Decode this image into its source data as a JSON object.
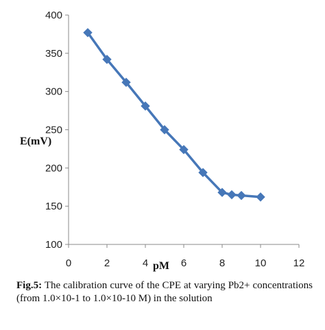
{
  "chart_data": {
    "type": "line",
    "title": "",
    "xlabel": "pM",
    "ylabel": "E(mV)",
    "xlim": [
      0,
      12
    ],
    "ylim": [
      100,
      400
    ],
    "xticks": [
      0,
      2,
      4,
      6,
      8,
      10,
      12
    ],
    "yticks": [
      100,
      150,
      200,
      250,
      300,
      350,
      400
    ],
    "grid": false,
    "series": [
      {
        "x": [
          1,
          2,
          3,
          4,
          5,
          6,
          7,
          8,
          8.5,
          9,
          10
        ],
        "y": [
          377,
          342,
          312,
          281,
          250,
          224,
          194,
          168,
          165,
          164,
          162
        ]
      }
    ],
    "colors": {
      "line": "#4677b8",
      "marker": "#4677b8"
    }
  },
  "caption": {
    "label": "Fig.5:",
    "text": " The calibration curve of the CPE at varying Pb2+ concentrations (from 1.0×10-1 to 1.0×10-10 M) in the solution"
  }
}
